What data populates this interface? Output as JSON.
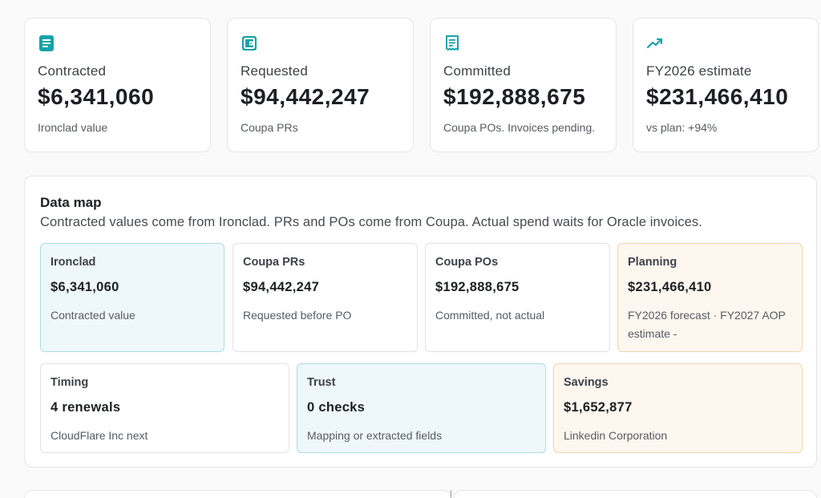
{
  "kpis": [
    {
      "icon": "document-icon",
      "label": "Contracted",
      "value": "$6,341,060",
      "sub": "Ironclad value"
    },
    {
      "icon": "wallet-icon",
      "label": "Requested",
      "value": "$94,442,247",
      "sub": "Coupa PRs"
    },
    {
      "icon": "receipt-icon",
      "label": "Committed",
      "value": "$192,888,675",
      "sub": "Coupa POs. Invoices pending."
    },
    {
      "icon": "trend-up-icon",
      "label": "FY2026 estimate",
      "value": "$231,466,410",
      "sub": "vs plan: +94%"
    }
  ],
  "data_map": {
    "title": "Data map",
    "description": "Contracted values come from Ironclad. PRs and POs come from Coupa. Actual spend waits for Oracle invoices.",
    "tiles": [
      {
        "label": "Ironclad",
        "value": "$6,341,060",
        "sub": "Contracted value",
        "accent": "#eef8fa"
      },
      {
        "label": "Coupa PRs",
        "value": "$94,442,247",
        "sub": "Requested before PO"
      },
      {
        "label": "Coupa POs",
        "value": "$192,888,675",
        "sub": "Committed, not actual"
      },
      {
        "label": "Planning",
        "value": "$231,466,410",
        "sub": "FY2026 forecast · FY2027 AOP estimate -",
        "accent": "#fdf7ef"
      },
      {
        "label": "Timing",
        "value": "4 renewals",
        "sub": "CloudFlare Inc next"
      },
      {
        "label": "Trust",
        "value": "0 checks",
        "sub": "Mapping or extracted fields",
        "accent": "#eef8fa"
      },
      {
        "label": "Savings",
        "value": "$1,652,877",
        "sub": "Linkedin Corporation",
        "accent": "#fdf7ef"
      }
    ]
  },
  "colors": {
    "icon_teal": "#17a2a8",
    "border": "#e3e5e8"
  }
}
